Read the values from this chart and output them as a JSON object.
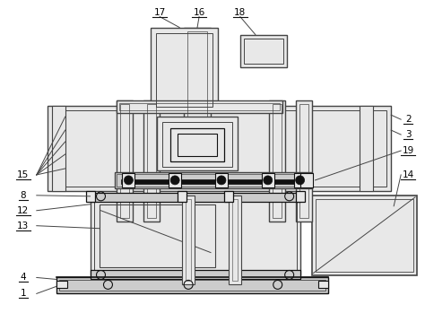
{
  "bg_color": "#ffffff",
  "lc": "#444444",
  "dc": "#111111",
  "gc": "#cccccc",
  "lgc": "#e8e8e8",
  "figsize": [
    4.74,
    3.49
  ],
  "dpi": 100
}
